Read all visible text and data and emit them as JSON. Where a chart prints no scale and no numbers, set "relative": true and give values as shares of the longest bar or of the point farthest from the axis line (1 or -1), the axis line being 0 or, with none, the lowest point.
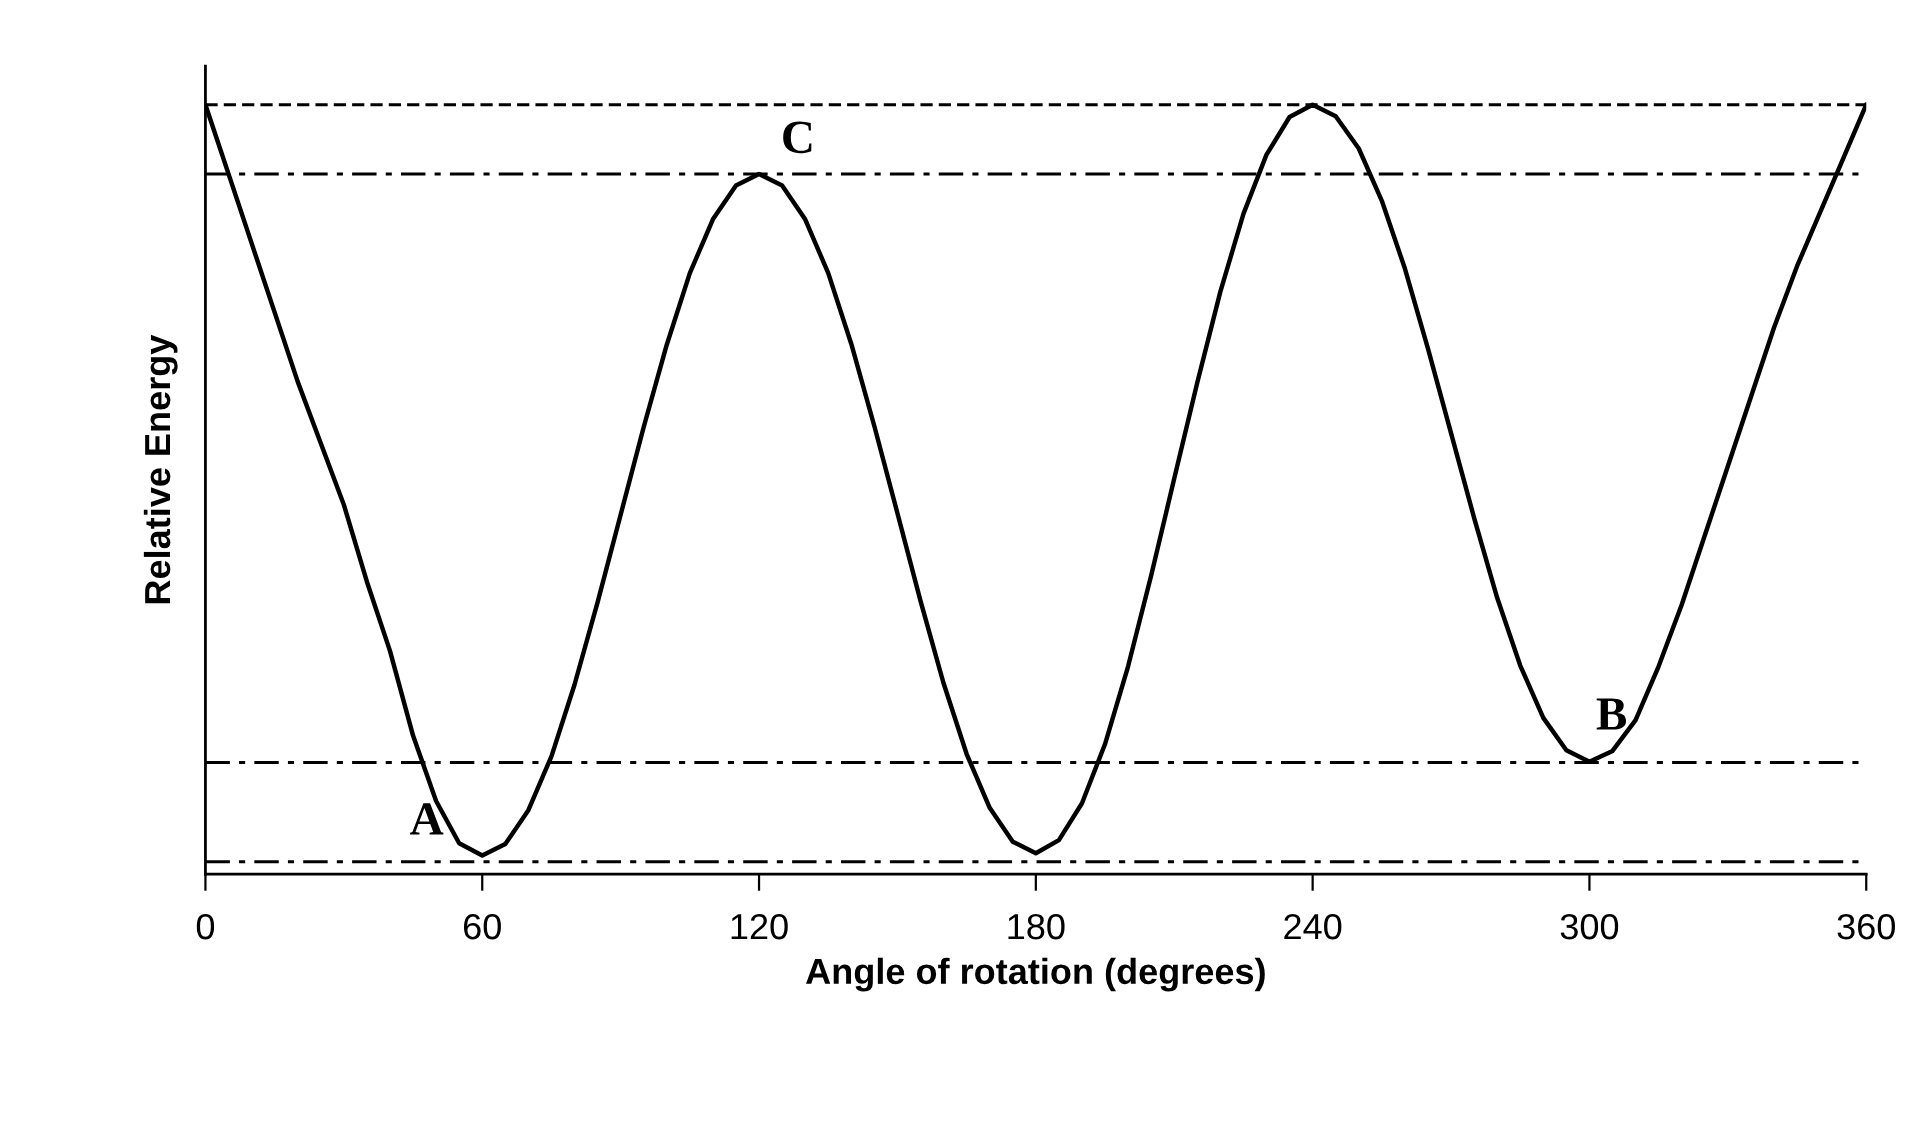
{
  "chart_data": {
    "type": "line",
    "relative": true,
    "xlabel": "Angle of rotation (degrees)",
    "ylabel": "Relative Energy",
    "x": [
      0,
      5,
      10,
      15,
      20,
      25,
      30,
      35,
      40,
      45,
      50,
      55,
      60,
      65,
      70,
      75,
      80,
      85,
      90,
      95,
      100,
      105,
      110,
      115,
      120,
      125,
      130,
      135,
      140,
      145,
      150,
      155,
      160,
      165,
      170,
      175,
      180,
      185,
      190,
      195,
      200,
      205,
      210,
      215,
      220,
      225,
      230,
      235,
      240,
      245,
      250,
      255,
      260,
      265,
      270,
      275,
      280,
      285,
      290,
      295,
      300,
      305,
      310,
      315,
      320,
      325,
      330,
      335,
      340,
      345,
      350,
      355,
      360
    ],
    "series": [
      {
        "color": "#000000",
        "values": [
          1.0,
          0.91,
          0.82,
          0.73,
          0.64,
          0.56,
          0.48,
          0.38,
          0.29,
          0.18,
          0.095,
          0.04,
          0.024,
          0.039,
          0.083,
          0.153,
          0.246,
          0.353,
          0.467,
          0.581,
          0.688,
          0.781,
          0.851,
          0.895,
          0.91,
          0.895,
          0.851,
          0.781,
          0.689,
          0.582,
          0.469,
          0.355,
          0.248,
          0.156,
          0.086,
          0.042,
          0.027,
          0.044,
          0.092,
          0.169,
          0.27,
          0.388,
          0.514,
          0.639,
          0.757,
          0.858,
          0.935,
          0.984,
          1.0,
          0.985,
          0.943,
          0.875,
          0.787,
          0.683,
          0.573,
          0.463,
          0.359,
          0.271,
          0.203,
          0.161,
          0.146,
          0.16,
          0.2,
          0.27,
          0.35,
          0.44,
          0.53,
          0.62,
          0.71,
          0.79,
          0.86,
          0.93,
          1.0
        ]
      }
    ],
    "xlim": [
      0,
      360
    ],
    "xticks": [
      0,
      60,
      120,
      180,
      240,
      300,
      360
    ],
    "ref_lines": [
      {
        "axis": "y",
        "value": 1.0,
        "color": "#000000",
        "line_style": "dashed"
      },
      {
        "axis": "y",
        "value": 0.91,
        "color": "#000000",
        "line_style": "dashdot"
      },
      {
        "axis": "y",
        "value": 0.145,
        "color": "#000000",
        "line_style": "dashdot"
      },
      {
        "axis": "y",
        "value": 0.016,
        "color": "#000000",
        "line_style": "dashdot"
      }
    ],
    "annotations": [
      {
        "text": "A",
        "x": 60,
        "y": 0.024
      },
      {
        "text": "C",
        "x": 120,
        "y": 0.91
      },
      {
        "text": "B",
        "x": 300,
        "y": 0.146
      }
    ],
    "grid": false,
    "legend": false,
    "marker": "none",
    "line_style": "solid"
  }
}
